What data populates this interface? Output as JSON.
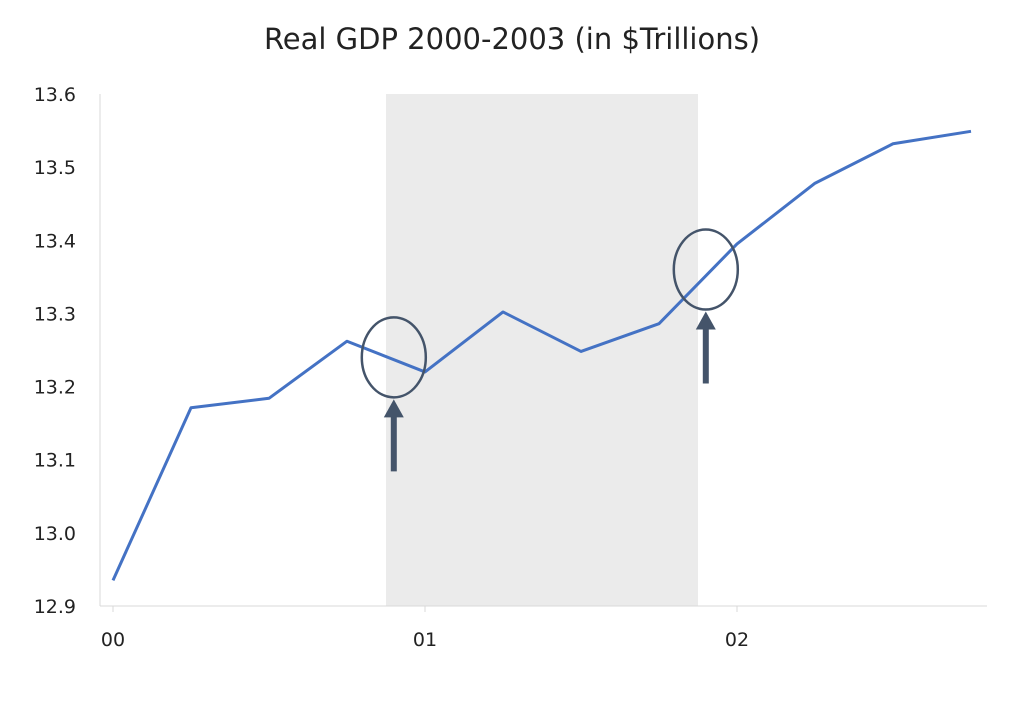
{
  "chart_data": {
    "type": "line",
    "title": "Real GDP 2000-2003 (in $Trillions)",
    "xlabel": "",
    "ylabel": "",
    "ylim": [
      12.9,
      13.6
    ],
    "y_ticks": [
      "12.9",
      "13.0",
      "13.1",
      "13.2",
      "13.3",
      "13.4",
      "13.5",
      "13.6"
    ],
    "x_ticks": [
      {
        "label": "00",
        "x": 0
      },
      {
        "label": "01",
        "x": 4
      },
      {
        "label": "02",
        "x": 8
      }
    ],
    "x": [
      0,
      1,
      2,
      3,
      4,
      5,
      6,
      7,
      8,
      9,
      10,
      11
    ],
    "series": [
      {
        "values": [
          12.935,
          13.171,
          13.184,
          13.262,
          13.22,
          13.302,
          13.248,
          13.286,
          13.395,
          13.478,
          13.532,
          13.549
        ]
      }
    ],
    "recession_shading": {
      "start": 3.5,
      "end": 7.5
    },
    "annotations": [
      {
        "type": "circle-with-arrow",
        "x": 3.6,
        "y": 13.24
      },
      {
        "type": "circle-with-arrow",
        "x": 7.6,
        "y": 13.36
      }
    ],
    "grid": false,
    "legend": "none",
    "colors": {
      "line": "#4472C4",
      "shading": "#EBEBEB",
      "annotation": "#44546A",
      "axis": "#D9D9D9"
    }
  }
}
